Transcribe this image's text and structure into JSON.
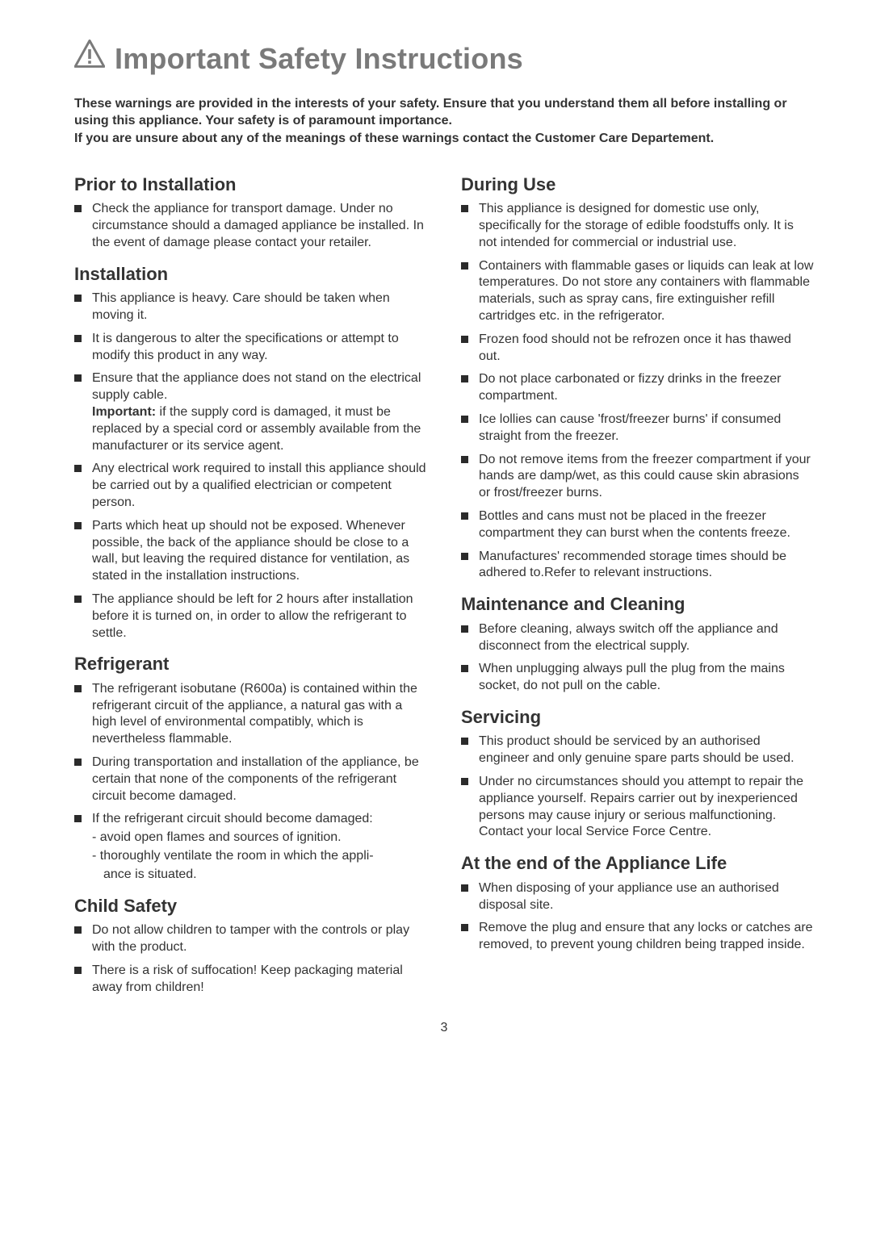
{
  "title": "Important Safety Instructions",
  "intro": "These warnings are provided in the interests of your safety. Ensure that you understand them all before installing or using this appliance. Your safety is of paramount importance.\nIf you are unsure about any of the meanings of these warnings contact the Customer Care Departement.",
  "page_number": "3",
  "left": {
    "s1": {
      "h": "Prior to Installation",
      "b1": "Check the appliance for transport damage. Under no circumstance should a damaged appliance be installed. In the event of damage please contact your retailer."
    },
    "s2": {
      "h": "Installation",
      "b1": "This appliance is heavy. Care should be taken when moving it.",
      "b2": "It is dangerous to alter the specifications or attempt to modify this product in any way.",
      "b3a": "Ensure that the appliance does not stand on the electrical supply cable.",
      "b3b_label": "Important:",
      "b3b": " if the supply cord is damaged, it must be replaced by a special cord or assembly available from the manufacturer or its service agent.",
      "b4": "Any electrical work required to install this appliance should be carried out by a qualified electrician or competent person.",
      "b5": "Parts which heat up should not be exposed. Whenever possible, the back of the appliance should be close to a wall, but leaving the required distance for ventilation, as stated in the installation instructions.",
      "b6": "The appliance should be left for 2 hours after installation before it is turned on, in order to allow the refrigerant to settle."
    },
    "s3": {
      "h": "Refrigerant",
      "b1": "The refrigerant isobutane (R600a) is contained within the refrigerant circuit of the appliance, a natural gas with a high level of environmental compatibly, which is nevertheless flammable.",
      "b2": "During transportation and installation of the appliance, be certain that none of the components of the refrigerant circuit become damaged.",
      "b3": "If the refrigerant circuit should become damaged:",
      "b3s1": "- avoid open flames and sources of ignition.",
      "b3s2": "- thoroughly ventilate the room in which the appli-",
      "b3s2c": "ance is situated."
    },
    "s4": {
      "h": "Child Safety",
      "b1": "Do not allow children to tamper with the controls or play with the product.",
      "b2": "There is a risk of suffocation! Keep packaging material away from children!"
    }
  },
  "right": {
    "s1": {
      "h": "During Use",
      "b1": "This appliance is designed for domestic use only, specifically for the storage of edible foodstuffs only. It is not intended for commercial or industrial use.",
      "b2": "Containers with flammable gases or liquids can leak at low temperatures. Do not store any containers with flammable materials, such as spray cans, fire extinguisher refill cartridges etc. in the refrigerator.",
      "b3": "Frozen food should not be refrozen once it has thawed out.",
      "b4": "Do not place carbonated or fizzy drinks in the freezer compartment.",
      "b5": "Ice lollies can cause 'frost/freezer burns' if consumed straight from the freezer.",
      "b6": "Do not remove items from the freezer compartment if your hands are damp/wet, as this could cause skin abrasions or frost/freezer burns.",
      "b7": "Bottles and cans must not be placed in the freezer compartment they can burst when the contents freeze.",
      "b8": "Manufactures' recommended storage times should be adhered to.Refer to relevant instructions."
    },
    "s2": {
      "h": "Maintenance and Cleaning",
      "b1": "Before cleaning, always switch off the appliance and disconnect from the electrical supply.",
      "b2": "When unplugging always pull the plug from the mains socket, do not pull on the cable."
    },
    "s3": {
      "h": "Servicing",
      "b1": "This product should be serviced by an authorised engineer and only genuine spare parts should be used.",
      "b2": "Under no circumstances should you attempt to repair the appliance yourself. Repairs carrier out by inexperienced persons may cause injury or serious malfunctioning. Contact your local Service Force Centre."
    },
    "s4": {
      "h": "At the end of the Appliance Life",
      "b1": "When disposing of your appliance use an authorised disposal site.",
      "b2": "Remove the plug and ensure that any locks or catches are removed, to prevent young children being trapped inside."
    }
  }
}
